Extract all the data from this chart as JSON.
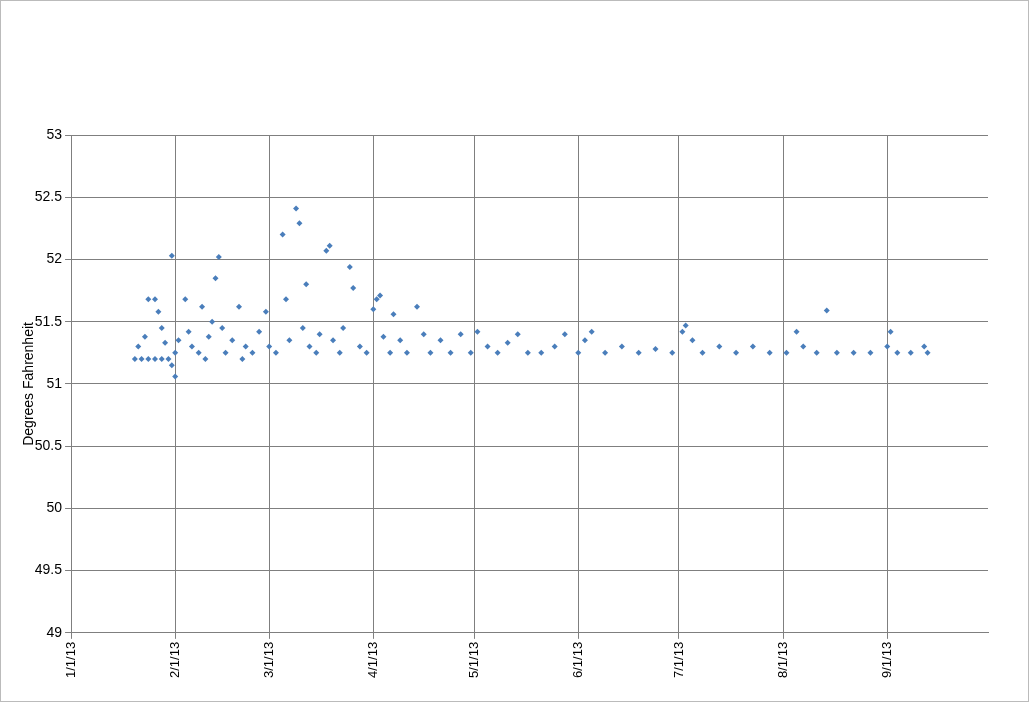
{
  "chart_data": {
    "type": "scatter",
    "ylabel": "Degrees Fahrenheit",
    "ylim": [
      49,
      53
    ],
    "yticks": [
      49,
      49.5,
      50,
      50.5,
      51,
      51.5,
      52,
      52.5,
      53
    ],
    "xlim": [
      "2013-01-01",
      "2013-10-01"
    ],
    "xticks": [
      {
        "value": "2013-01-01",
        "label": "1/1/13"
      },
      {
        "value": "2013-02-01",
        "label": "2/1/13"
      },
      {
        "value": "2013-03-01",
        "label": "3/1/13"
      },
      {
        "value": "2013-04-01",
        "label": "4/1/13"
      },
      {
        "value": "2013-05-01",
        "label": "5/1/13"
      },
      {
        "value": "2013-06-01",
        "label": "6/1/13"
      },
      {
        "value": "2013-07-01",
        "label": "7/1/13"
      },
      {
        "value": "2013-08-01",
        "label": "8/1/13"
      },
      {
        "value": "2013-09-01",
        "label": "9/1/13"
      }
    ],
    "grid": true,
    "legend": false,
    "marker": "diamond",
    "series": [
      {
        "color": "#4a7ebb",
        "x": [
          "2013-01-20",
          "2013-01-22",
          "2013-01-24",
          "2013-01-26",
          "2013-01-28",
          "2013-01-30",
          "2013-01-21",
          "2013-01-23",
          "2013-01-24",
          "2013-01-26",
          "2013-01-27",
          "2013-01-28",
          "2013-01-29",
          "2013-01-31",
          "2013-01-31",
          "2013-02-01",
          "2013-02-01",
          "2013-02-02",
          "2013-02-04",
          "2013-02-05",
          "2013-02-06",
          "2013-02-08",
          "2013-02-09",
          "2013-02-10",
          "2013-02-11",
          "2013-02-12",
          "2013-02-13",
          "2013-02-14",
          "2013-02-15",
          "2013-02-16",
          "2013-02-18",
          "2013-02-20",
          "2013-02-21",
          "2013-02-22",
          "2013-02-24",
          "2013-02-26",
          "2013-02-28",
          "2013-03-01",
          "2013-03-03",
          "2013-03-05",
          "2013-03-06",
          "2013-03-07",
          "2013-03-09",
          "2013-03-10",
          "2013-03-11",
          "2013-03-12",
          "2013-03-13",
          "2013-03-15",
          "2013-03-16",
          "2013-03-18",
          "2013-03-19",
          "2013-03-20",
          "2013-03-22",
          "2013-03-23",
          "2013-03-25",
          "2013-03-26",
          "2013-03-28",
          "2013-03-30",
          "2013-04-01",
          "2013-04-02",
          "2013-04-03",
          "2013-04-04",
          "2013-04-06",
          "2013-04-07",
          "2013-04-09",
          "2013-04-11",
          "2013-04-14",
          "2013-04-16",
          "2013-04-18",
          "2013-04-21",
          "2013-04-24",
          "2013-04-27",
          "2013-04-30",
          "2013-05-02",
          "2013-05-05",
          "2013-05-08",
          "2013-05-11",
          "2013-05-14",
          "2013-05-17",
          "2013-05-21",
          "2013-05-25",
          "2013-05-28",
          "2013-06-01",
          "2013-06-03",
          "2013-06-05",
          "2013-06-09",
          "2013-06-14",
          "2013-06-19",
          "2013-06-24",
          "2013-06-29",
          "2013-07-02",
          "2013-07-03",
          "2013-07-05",
          "2013-07-08",
          "2013-07-13",
          "2013-07-18",
          "2013-07-23",
          "2013-07-28",
          "2013-08-02",
          "2013-08-05",
          "2013-08-07",
          "2013-08-11",
          "2013-08-14",
          "2013-08-17",
          "2013-08-22",
          "2013-08-27",
          "2013-09-01",
          "2013-09-02",
          "2013-09-04",
          "2013-09-08",
          "2013-09-12",
          "2013-09-13"
        ],
        "values": [
          51.2,
          51.2,
          51.2,
          51.2,
          51.2,
          51.2,
          51.3,
          51.38,
          51.68,
          51.68,
          51.58,
          51.45,
          51.33,
          52.03,
          51.15,
          51.06,
          51.25,
          51.35,
          51.68,
          51.42,
          51.3,
          51.25,
          51.62,
          51.2,
          51.38,
          51.5,
          51.85,
          52.02,
          51.45,
          51.25,
          51.35,
          51.62,
          51.2,
          51.3,
          51.25,
          51.42,
          51.58,
          51.3,
          51.25,
          52.2,
          51.68,
          51.35,
          52.41,
          52.29,
          51.45,
          51.8,
          51.3,
          51.25,
          51.4,
          52.07,
          52.11,
          51.35,
          51.25,
          51.45,
          51.94,
          51.77,
          51.3,
          51.25,
          51.6,
          51.68,
          51.71,
          51.38,
          51.25,
          51.56,
          51.35,
          51.25,
          51.62,
          51.4,
          51.25,
          51.35,
          51.25,
          51.4,
          51.25,
          51.42,
          51.3,
          51.25,
          51.33,
          51.4,
          51.25,
          51.25,
          51.3,
          51.4,
          51.25,
          51.35,
          51.42,
          51.25,
          51.3,
          51.25,
          51.28,
          51.25,
          51.42,
          51.47,
          51.35,
          51.25,
          51.3,
          51.25,
          51.3,
          51.25,
          51.25,
          51.42,
          51.3,
          51.25,
          51.59,
          51.25,
          51.25,
          51.25,
          51.3,
          51.42,
          51.25,
          51.25,
          51.3,
          51.25
        ]
      }
    ]
  }
}
